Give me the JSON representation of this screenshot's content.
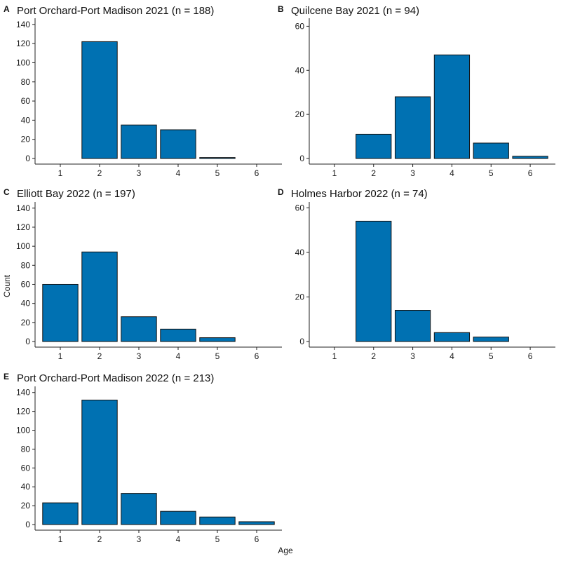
{
  "shared": {
    "xlabel": "Age",
    "ylabel": "Count",
    "bar_color": "#0071B2"
  },
  "chart_data": [
    {
      "type": "bar",
      "tag": "A",
      "title": "Port Orchard-Port Madison 2021 (n = 188)",
      "categories": [
        "1",
        "2",
        "3",
        "4",
        "5",
        "6"
      ],
      "values": [
        0,
        122,
        35,
        30,
        1,
        0
      ],
      "ylim": [
        0,
        145
      ],
      "yticks": [
        0,
        20,
        40,
        60,
        80,
        100,
        120,
        140
      ]
    },
    {
      "type": "bar",
      "tag": "B",
      "title": "Quilcene Bay 2021 (n = 94)",
      "categories": [
        "1",
        "2",
        "3",
        "4",
        "5",
        "6"
      ],
      "values": [
        0,
        11,
        28,
        47,
        7,
        1
      ],
      "ylim": [
        0,
        63
      ],
      "yticks": [
        0,
        20,
        40,
        60
      ]
    },
    {
      "type": "bar",
      "tag": "C",
      "title": "Elliott Bay 2022 (n = 197)",
      "categories": [
        "1",
        "2",
        "3",
        "4",
        "5",
        "6"
      ],
      "values": [
        60,
        94,
        26,
        13,
        4,
        0
      ],
      "ylim": [
        0,
        145
      ],
      "yticks": [
        0,
        20,
        40,
        60,
        80,
        100,
        120,
        140
      ]
    },
    {
      "type": "bar",
      "tag": "D",
      "title": "Holmes Harbor 2022 (n = 74)",
      "categories": [
        "1",
        "2",
        "3",
        "4",
        "5",
        "6"
      ],
      "values": [
        0,
        54,
        14,
        4,
        2,
        0
      ],
      "ylim": [
        0,
        62
      ],
      "yticks": [
        0,
        20,
        40,
        60
      ]
    },
    {
      "type": "bar",
      "tag": "E",
      "title": "Port Orchard-Port Madison 2022 (n = 213)",
      "categories": [
        "1",
        "2",
        "3",
        "4",
        "5",
        "6"
      ],
      "values": [
        23,
        132,
        33,
        14,
        8,
        3
      ],
      "ylim": [
        0,
        145
      ],
      "yticks": [
        0,
        20,
        40,
        60,
        80,
        100,
        120,
        140
      ]
    }
  ]
}
